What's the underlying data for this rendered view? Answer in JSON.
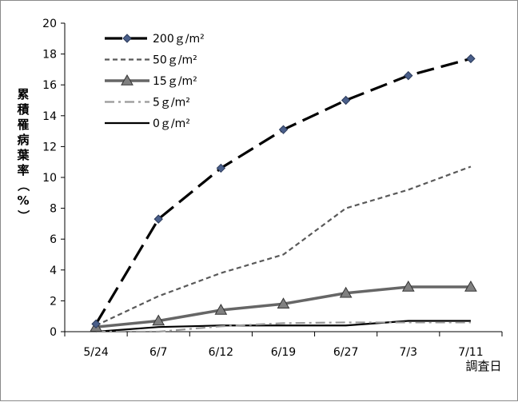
{
  "chart_data": {
    "type": "line",
    "categories": [
      "5/24",
      "6/7",
      "6/12",
      "6/19",
      "6/27",
      "7/3",
      "7/11"
    ],
    "ylabel": "累積罹病葉率（%）",
    "xlabel": "調査日",
    "ylim": [
      0,
      20
    ],
    "yticks": [
      0,
      2,
      4,
      6,
      8,
      10,
      12,
      14,
      16,
      18,
      20
    ],
    "grid": false,
    "legend_position": "top-left",
    "series": [
      {
        "name": "200ｇ/m²",
        "values": [
          0.5,
          7.3,
          10.6,
          13.1,
          15.0,
          16.6,
          17.7
        ],
        "color": "#000000",
        "dash": "long-dash",
        "marker": "diamond",
        "marker_color": "#4a5f8a"
      },
      {
        "name": "50ｇ/m²",
        "values": [
          0.4,
          2.3,
          3.8,
          5.0,
          8.0,
          9.2,
          10.7
        ],
        "color": "#595959",
        "dash": "short-dash",
        "marker": "none"
      },
      {
        "name": "15ｇ/m²",
        "values": [
          0.3,
          0.7,
          1.4,
          1.8,
          2.5,
          2.9,
          2.9
        ],
        "color": "#666666",
        "dash": "solid-thick",
        "marker": "triangle",
        "marker_color": "#808080"
      },
      {
        "name": "5ｇ/m²",
        "values": [
          0.0,
          0.0,
          0.35,
          0.55,
          0.6,
          0.6,
          0.6
        ],
        "color": "#999999",
        "dash": "dash-dot",
        "marker": "none"
      },
      {
        "name": "0ｇ/m²",
        "values": [
          0.0,
          0.3,
          0.4,
          0.4,
          0.4,
          0.7,
          0.7
        ],
        "color": "#000000",
        "dash": "solid",
        "marker": "none"
      }
    ]
  }
}
